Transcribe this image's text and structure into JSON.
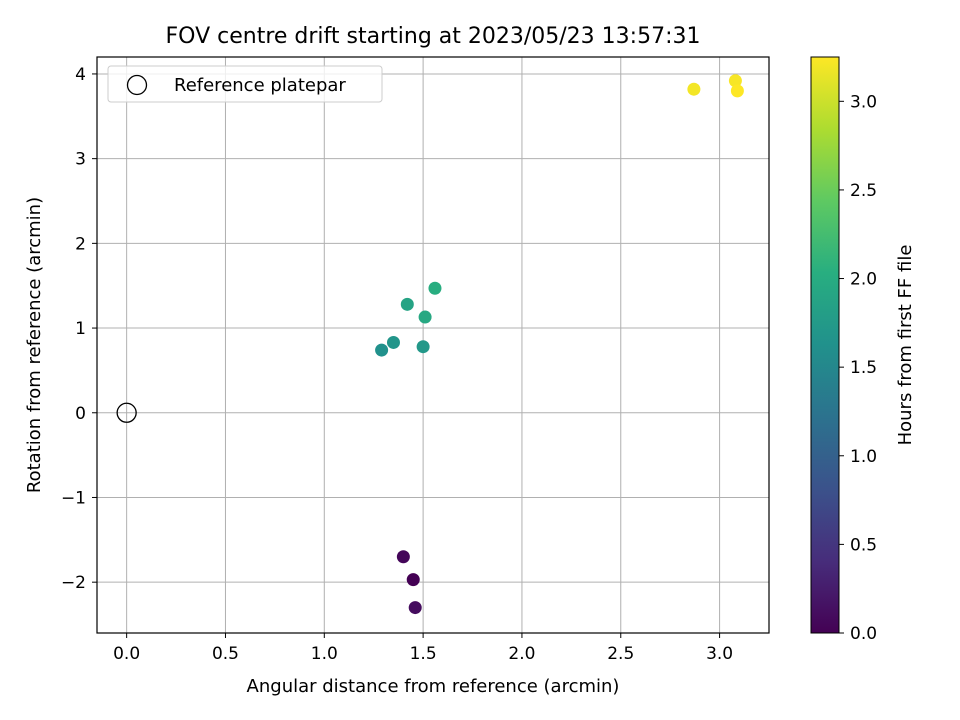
{
  "chart_data": {
    "type": "scatter",
    "title": "FOV centre drift starting at 2023/05/23 13:57:31",
    "xlabel": "Angular distance from reference (arcmin)",
    "ylabel": "Rotation from reference (arcmin)",
    "xlim": [
      -0.15,
      3.25
    ],
    "ylim": [
      -2.6,
      4.2
    ],
    "xticks": [
      0.0,
      0.5,
      1.0,
      1.5,
      2.0,
      2.5,
      3.0
    ],
    "xtick_labels": [
      "0.0",
      "0.5",
      "1.0",
      "1.5",
      "2.0",
      "2.5",
      "3.0"
    ],
    "yticks": [
      -2,
      -1,
      0,
      1,
      2,
      3,
      4
    ],
    "ytick_labels": [
      "−2",
      "−1",
      "0",
      "1",
      "2",
      "3",
      "4"
    ],
    "grid": true,
    "legend": {
      "position": "top-left",
      "entries": [
        "Reference platepar"
      ]
    },
    "reference_point": {
      "x": 0.0,
      "y": 0.0,
      "label": "Reference platepar",
      "marker": "open-circle"
    },
    "points": [
      {
        "x": 1.4,
        "y": -1.7,
        "hours": 0.05
      },
      {
        "x": 1.45,
        "y": -1.97,
        "hours": 0.0
      },
      {
        "x": 1.46,
        "y": -2.3,
        "hours": 0.1
      },
      {
        "x": 1.29,
        "y": 0.74,
        "hours": 1.62
      },
      {
        "x": 1.35,
        "y": 0.83,
        "hours": 1.68
      },
      {
        "x": 1.5,
        "y": 0.78,
        "hours": 1.72
      },
      {
        "x": 1.42,
        "y": 1.28,
        "hours": 1.88
      },
      {
        "x": 1.51,
        "y": 1.13,
        "hours": 1.95
      },
      {
        "x": 1.56,
        "y": 1.47,
        "hours": 2.02
      },
      {
        "x": 2.87,
        "y": 3.82,
        "hours": 3.2
      },
      {
        "x": 3.08,
        "y": 3.92,
        "hours": 3.22
      },
      {
        "x": 3.09,
        "y": 3.8,
        "hours": 3.25
      }
    ],
    "colorbar": {
      "label": "Hours from first FF file",
      "colormap": "viridis",
      "range": [
        0.0,
        3.25
      ],
      "ticks": [
        0.0,
        0.5,
        1.0,
        1.5,
        2.0,
        2.5,
        3.0
      ],
      "tick_labels": [
        "0.0",
        "0.5",
        "1.0",
        "1.5",
        "2.0",
        "2.5",
        "3.0"
      ]
    }
  }
}
